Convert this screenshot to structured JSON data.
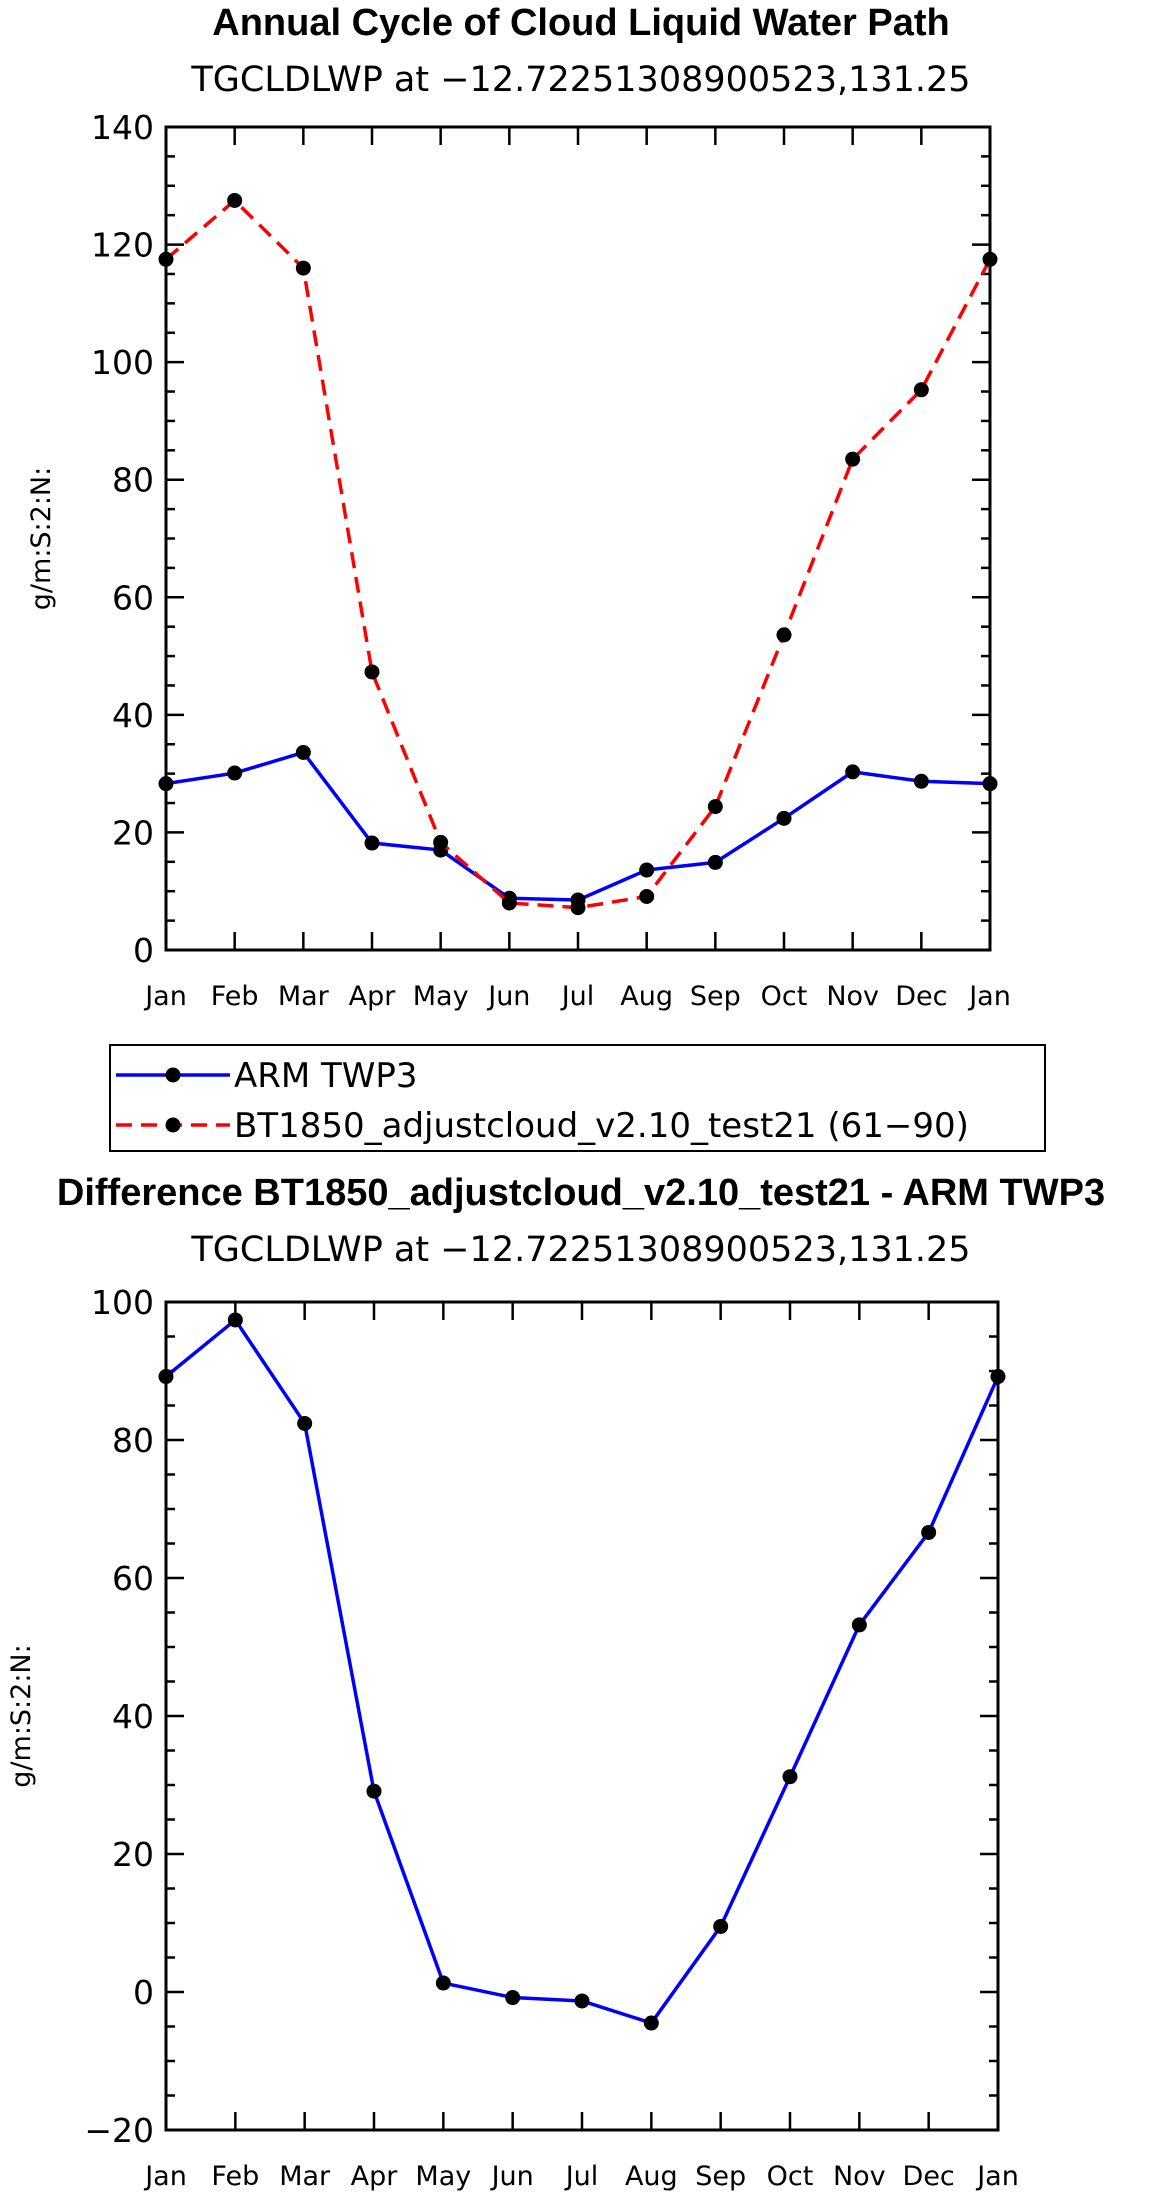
{
  "chart_data": [
    {
      "type": "line",
      "title": "Annual Cycle of Cloud Liquid Water Path",
      "subtitle": "TGCLDLWP at −12.72251308900523,131.25",
      "ylabel": "g/m:S:2:N:",
      "ylim": [
        0,
        140
      ],
      "yticks": [
        "0",
        "20",
        "40",
        "60",
        "80",
        "100",
        "120",
        "140"
      ],
      "categories": [
        "Jan",
        "Feb",
        "Mar",
        "Apr",
        "May",
        "Jun",
        "Jul",
        "Aug",
        "Sep",
        "Oct",
        "Nov",
        "Dec",
        "Jan"
      ],
      "series": [
        {
          "name": "ARM TWP3",
          "color": "#0000ff",
          "style": "solid",
          "values": [
            28.3,
            30.1,
            33.6,
            18.2,
            17.0,
            8.8,
            8.5,
            13.6,
            14.9,
            22.4,
            30.3,
            28.7,
            28.3
          ]
        },
        {
          "name": "BT1850_adjustcloud_v2.10_test21 (61−90)",
          "color": "#ff0000",
          "style": "dashed",
          "values": [
            117.5,
            127.5,
            116.0,
            47.3,
            18.3,
            8.0,
            7.2,
            9.1,
            24.4,
            53.6,
            83.5,
            95.3,
            117.5
          ]
        }
      ],
      "legend": "bottom",
      "marker_color": "#000000"
    },
    {
      "type": "line",
      "title": "Difference BT1850_adjustcloud_v2.10_test21 - ARM TWP3",
      "subtitle": "TGCLDLWP at −12.72251308900523,131.25",
      "ylabel": "g/m:S:2:N:",
      "ylim": [
        -20,
        100
      ],
      "yticks": [
        "−20",
        "0",
        "20",
        "40",
        "60",
        "80",
        "100"
      ],
      "categories": [
        "Jan",
        "Feb",
        "Mar",
        "Apr",
        "May",
        "Jun",
        "Jul",
        "Aug",
        "Sep",
        "Oct",
        "Nov",
        "Dec",
        "Jan"
      ],
      "series": [
        {
          "color": "#0000ff",
          "style": "solid",
          "values": [
            89.2,
            97.4,
            82.4,
            29.1,
            1.3,
            -0.8,
            -1.3,
            -4.5,
            9.5,
            31.2,
            53.2,
            66.6,
            89.2
          ]
        }
      ],
      "marker_color": "#000000"
    }
  ]
}
